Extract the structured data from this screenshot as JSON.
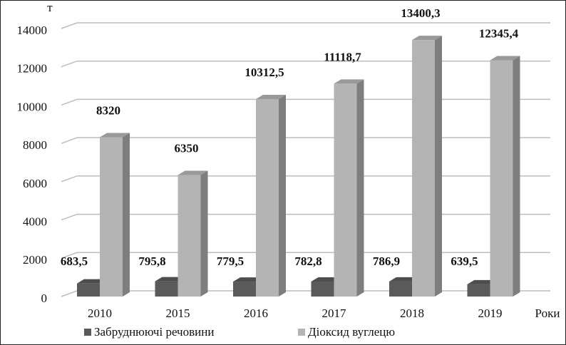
{
  "chart_data": {
    "type": "bar3d",
    "y_label": "т",
    "x_label": "Роки",
    "categories": [
      "2010",
      "2015",
      "2016",
      "2017",
      "2018",
      "2019"
    ],
    "series": [
      {
        "name": "Забруднюючі речовини",
        "color": "#5a5a5a",
        "values": [
          683.5,
          795.8,
          779.5,
          782.8,
          786.9,
          639.5
        ],
        "value_labels": [
          "683,5",
          "795,8",
          "779,5",
          "782,8",
          "786,9",
          "639,5"
        ]
      },
      {
        "name": "Діоксид вуглецю",
        "color": "#b4b4b4",
        "values": [
          8320,
          6350,
          10312.5,
          11118.7,
          13400.3,
          12345.4
        ],
        "value_labels": [
          "8320",
          "6350",
          "10312,5",
          "11118,7",
          "13400,3",
          "12345,4"
        ]
      }
    ],
    "ylim": [
      0,
      14000
    ],
    "yticks": [
      0,
      2000,
      4000,
      6000,
      8000,
      10000,
      12000,
      14000
    ],
    "grid": true,
    "legend": "bottom"
  }
}
